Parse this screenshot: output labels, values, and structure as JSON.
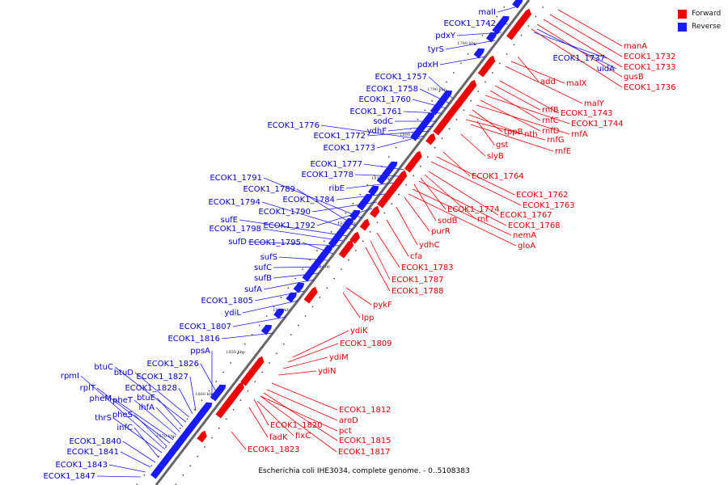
{
  "legend": {
    "forward_label": "Forward",
    "reverse_label": "Reverse",
    "forward_color": "#ee0000",
    "reverse_color": "#1a1aff"
  },
  "caption": "Escherichia coli IHE3034, complete genome. - 0..5108383",
  "scale_ticks": [
    "1780 kbp",
    "1790 kbp",
    "1800 kbp",
    "1810 kbp",
    "1820 kbp",
    "1830 kbp",
    "1840 kbp",
    "1850 kbp",
    "1860 kbp",
    "1870 kbp"
  ],
  "forward_genes": [
    "manA",
    "ECOK1_1732",
    "ECOK1_1733",
    "gusB",
    "ECOK1_1736",
    "add",
    "malX",
    "malY",
    "ECOK1_1743",
    "rnfB",
    "rnfC",
    "ECOK1_1744",
    "rnfD",
    "rnfA",
    "tppB",
    "nth",
    "rnfG",
    "gst",
    "rnfE",
    "slyB",
    "ECOK1_1764",
    "ECOK1_1762",
    "ECOK1_1763",
    "ECOK1_1774",
    "ECOK1_1767",
    "rnt",
    "sodB",
    "ECOK1_1768",
    "nemA",
    "purR",
    "gloA",
    "ydhC",
    "cfa",
    "ECOK1_1783",
    "ECOK1_1787",
    "ECOK1_1788",
    "pykF",
    "lpp",
    "ydiK",
    "ECOK1_1809",
    "ydiM",
    "ydiN",
    "ECOK1_1812",
    "aroD",
    "ECOK1_1820",
    "pct",
    "fadK",
    "fixC",
    "ECOK1_1815",
    "ECOK1_1823",
    "ECOK1_1817"
  ],
  "reverse_genes": [
    "malI",
    "ECOK1_1742",
    "pdxY",
    "tyrS",
    "ECOK1_1737",
    "uidA",
    "pdxH",
    "ECOK1_1757",
    "ECOK1_1758",
    "ECOK1_1760",
    "ECOK1_1761",
    "sodC",
    "ECOK1_1776",
    "ydhF",
    "ECOK1_1772",
    "ECOK1_1773",
    "ECOK1_1777",
    "ECOK1_1778",
    "ECOK1_1791",
    "ribE",
    "ECOK1_1789",
    "ECOK1_1784",
    "ECOK1_1794",
    "ECOK1_1790",
    "sufE",
    "ECOK1_1792",
    "ECOK1_1798",
    "sufD",
    "ECOK1_1795",
    "sufS",
    "sufC",
    "sufB",
    "sufA",
    "ECOK1_1805",
    "ydiL",
    "ECOK1_1807",
    "ECOK1_1816",
    "ppsA",
    "ECOK1_1826",
    "btuC",
    "btuD",
    "ECOK1_1827",
    "rpmI",
    "rplT",
    "ECOK1_1828",
    "pheM",
    "pheT",
    "btuE",
    "ihfA",
    "pheS",
    "thrS",
    "infC",
    "ECOK1_1840",
    "ECOK1_1841",
    "ECOK1_1843",
    "ECOK1_1847"
  ]
}
